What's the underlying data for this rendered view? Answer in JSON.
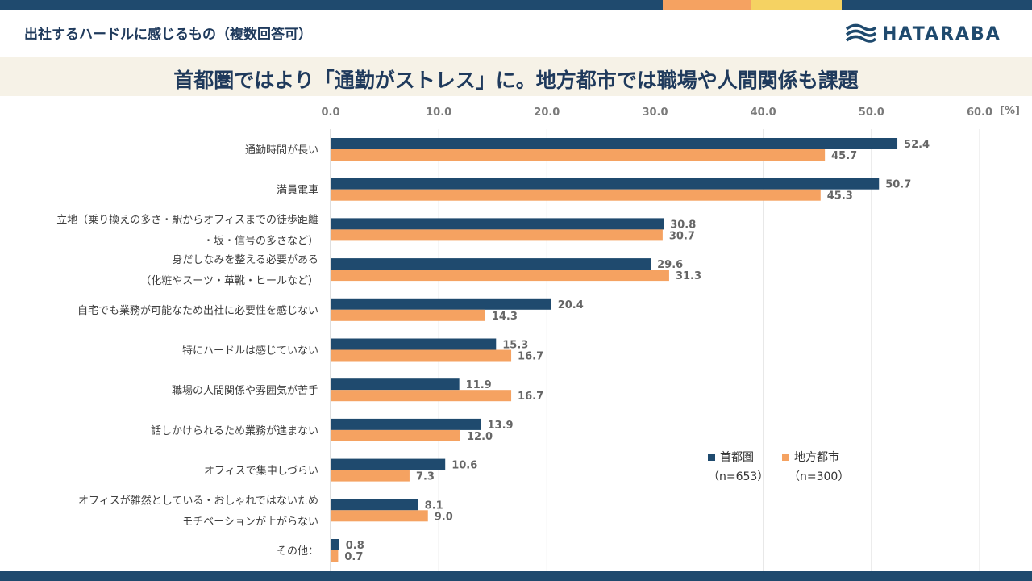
{
  "header": {
    "title": "出社するハードルに感じるもの（複数回答可）"
  },
  "logo": {
    "text": "HATARABA",
    "icon": "wave-icon"
  },
  "headline": "首都圏ではより「通勤がストレス」に。地方都市では職場や人間関係も課題",
  "colors": {
    "series1": "#1f4a6e",
    "series2": "#f5a261",
    "accent_yellow": "#f5d262",
    "band": "#f6f2e7"
  },
  "chart_data": {
    "type": "bar",
    "orientation": "horizontal",
    "xlim": [
      0,
      60
    ],
    "ticks": [
      "0.0",
      "10.0",
      "20.0",
      "30.0",
      "40.0",
      "50.0",
      "60.0"
    ],
    "tick_values": [
      0,
      10,
      20,
      30,
      40,
      50,
      60
    ],
    "unit": "[%]",
    "categories": [
      [
        "通勤時間が長い"
      ],
      [
        "満員電車"
      ],
      [
        "立地（乗り換えの多さ・駅からオフィスまでの徒歩距離",
        "・坂・信号の多さなど）"
      ],
      [
        "身だしなみを整える必要がある",
        "（化粧やスーツ・革靴・ヒールなど）"
      ],
      [
        "自宅でも業務が可能なため出社に必要性を感じない"
      ],
      [
        "特にハードルは感じていない"
      ],
      [
        "職場の人間関係や雰囲気が苦手"
      ],
      [
        "話しかけられるため業務が進まない"
      ],
      [
        "オフィスで集中しづらい"
      ],
      [
        "オフィスが雑然としている・おしゃれではないため",
        "モチベーションが上がらない"
      ],
      [
        "その他："
      ]
    ],
    "series": [
      {
        "name": "首都圏",
        "n": "（n=653）",
        "values": [
          52.4,
          50.7,
          30.8,
          29.6,
          20.4,
          15.3,
          11.9,
          13.9,
          10.6,
          8.1,
          0.8
        ]
      },
      {
        "name": "地方都市",
        "n": "（n=300）",
        "values": [
          45.7,
          45.3,
          30.7,
          31.3,
          14.3,
          16.7,
          16.7,
          12.0,
          7.3,
          9.0,
          0.7
        ]
      }
    ]
  }
}
